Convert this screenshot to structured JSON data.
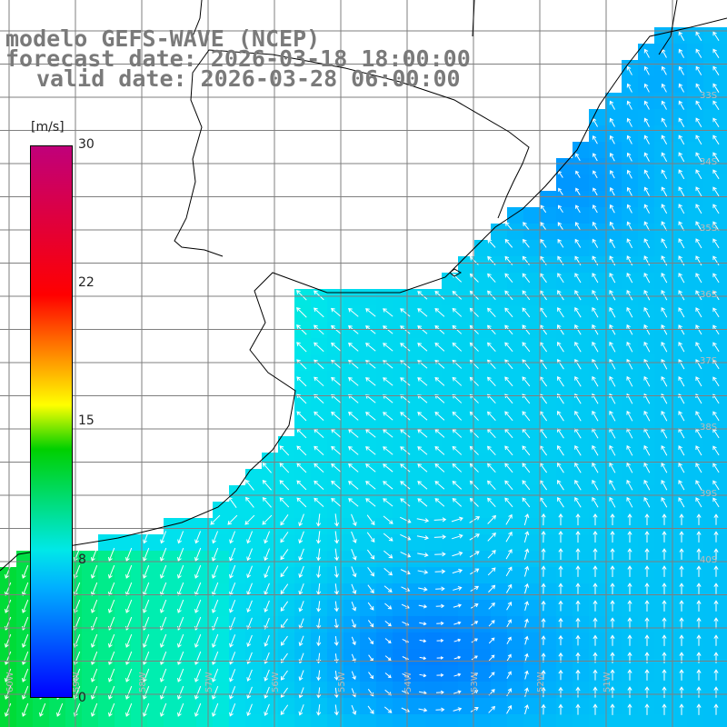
{
  "header": {
    "title": "modelo GEFS-WAVE (NCEP)",
    "forecast": "forecast date: 2026-03-18 18:00:00",
    "valid": "valid date: 2026-03-28 06:00:00"
  },
  "colorbar": {
    "unit": "[m/s]",
    "min": 0,
    "max": 30,
    "ticks": [
      "30",
      "22",
      "15",
      "8",
      "0"
    ]
  },
  "grid": {
    "lat_labels": [
      "33S",
      "34S",
      "35S",
      "36S",
      "37S",
      "38S",
      "39S",
      "40S"
    ],
    "lon_labels": [
      "60W",
      "59W",
      "58W",
      "57W",
      "56W",
      "55W",
      "54W",
      "53W",
      "52W",
      "51W"
    ]
  },
  "colors": {
    "land": "#ffffff",
    "coast": "#000000",
    "grid": "#7f7f7f",
    "arrows": "#ffffff"
  }
}
